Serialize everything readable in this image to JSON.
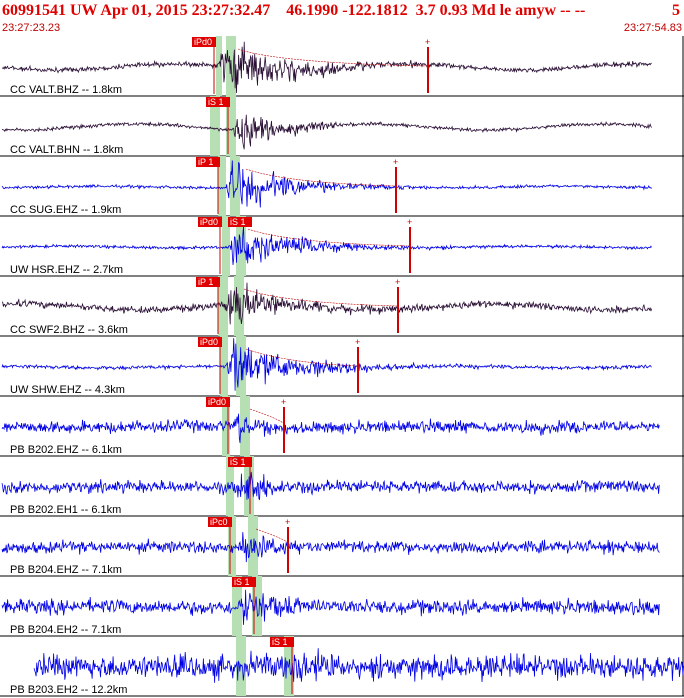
{
  "header": {
    "title": "60991541 UW Apr 01, 2015 23:27:32.47    46.1990 -122.1812  3.7 0.93 Md le amyw -- --",
    "page_number": "5",
    "time_start": "23:27:23.23",
    "time_end": "23:27:54.83"
  },
  "colors": {
    "header_text": "#e00000",
    "trace_dark": "#2a0f35",
    "trace_blue": "#0000e6",
    "pick_fill": "#e00000",
    "window_band": "#b6dfb3"
  },
  "traces": [
    {
      "label": "CC VALT.BHZ -- 1.8km",
      "pick": "iPd0",
      "color": "dark",
      "amp_marker": true
    },
    {
      "label": "CC VALT.BHN -- 1.8km",
      "pick": "iS 1",
      "color": "dark",
      "amp_marker": false
    },
    {
      "label": "CC SUG.EHZ -- 1.9km",
      "pick": "iP 1",
      "color": "blue",
      "amp_marker": true
    },
    {
      "label": "UW HSR.EHZ -- 2.7km",
      "pick": "iPd0",
      "pick2": "iS 1",
      "color": "blue",
      "amp_marker": true
    },
    {
      "label": "CC SWF2.BHZ -- 3.6km",
      "pick": "iP 1",
      "color": "dark",
      "amp_marker": true
    },
    {
      "label": "UW SHW.EHZ -- 4.3km",
      "pick": "iPd0",
      "color": "blue",
      "amp_marker": true
    },
    {
      "label": "PB B202.EHZ -- 6.1km",
      "pick": "iPd0",
      "color": "blue",
      "amp_marker": true
    },
    {
      "label": "PB B202.EH1 -- 6.1km",
      "pick": "iS 1",
      "color": "blue",
      "amp_marker": false
    },
    {
      "label": "PB B204.EHZ -- 7.1km",
      "pick": "iPc0",
      "color": "blue",
      "amp_marker": true
    },
    {
      "label": "PB B204.EH2 -- 7.1km",
      "pick": "iS 1",
      "color": "blue",
      "amp_marker": false
    },
    {
      "label": "PB B203.EH2 -- 12.2km",
      "pick": "iS 1",
      "color": "blue",
      "amp_marker": false
    }
  ]
}
